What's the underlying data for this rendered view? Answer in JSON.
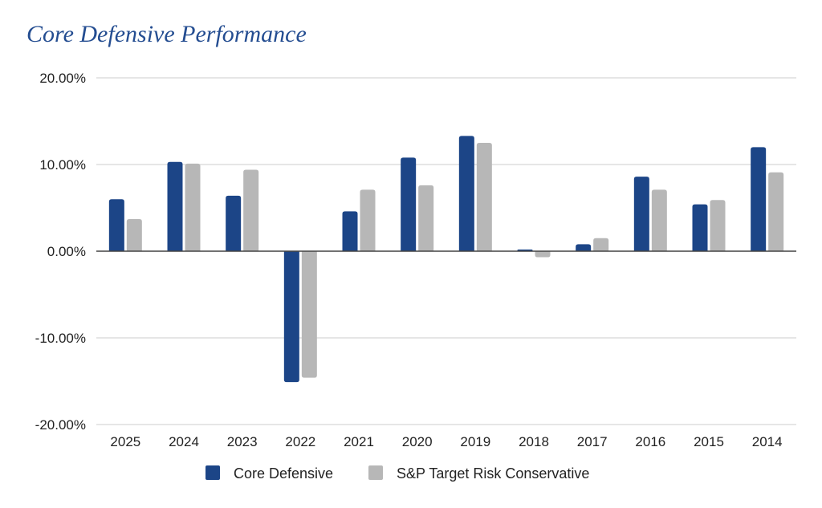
{
  "chart_data": {
    "type": "bar",
    "title": "Core Defensive Performance",
    "xlabel": "",
    "ylabel": "",
    "categories": [
      "2025",
      "2024",
      "2023",
      "2022",
      "2021",
      "2020",
      "2019",
      "2018",
      "2017",
      "2016",
      "2015",
      "2014"
    ],
    "series": [
      {
        "name": "Core Defensive",
        "color": "#1c4587",
        "values": [
          6.0,
          10.3,
          6.4,
          -15.1,
          4.6,
          10.8,
          13.3,
          0.2,
          0.8,
          8.6,
          5.4,
          12.0
        ]
      },
      {
        "name": "S&P Target Risk Conservative",
        "color": "#b7b7b7",
        "values": [
          3.7,
          10.1,
          9.4,
          -14.6,
          7.1,
          7.6,
          12.5,
          -0.7,
          1.5,
          7.1,
          5.9,
          9.1
        ]
      }
    ],
    "ylim": [
      -20,
      20
    ],
    "yticks": [
      20,
      10,
      0,
      -10,
      -20
    ],
    "ytick_labels": [
      "20.00%",
      "10.00%",
      "0.00%",
      "-10.00%",
      "-20.00%"
    ],
    "grid": true,
    "legend_position": "bottom-center"
  }
}
